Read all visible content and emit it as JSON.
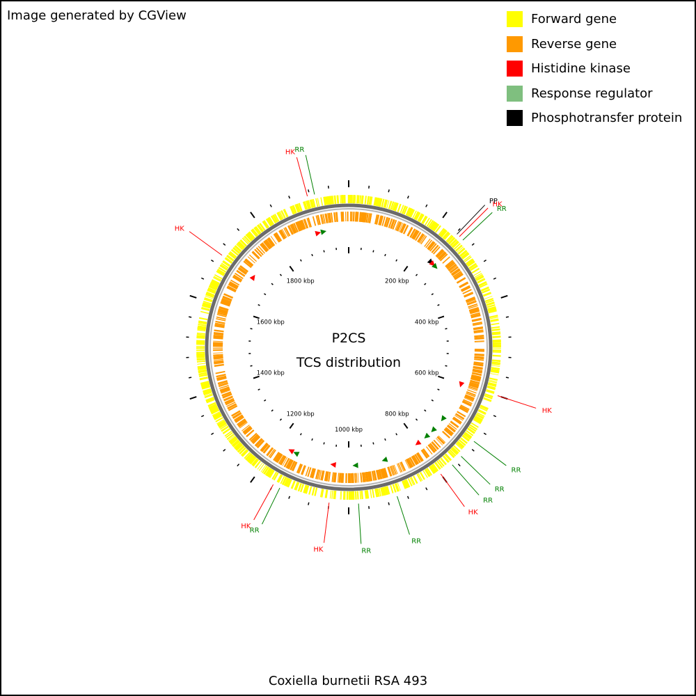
{
  "credit": "Image generated by CGView",
  "legend": [
    {
      "label": "Forward gene",
      "color": "#ffff00"
    },
    {
      "label": "Reverse gene",
      "color": "#ff9900"
    },
    {
      "label": "Histidine kinase",
      "color": "#ff0000"
    },
    {
      "label": "Response regulator",
      "color": "#7fbf7f"
    },
    {
      "label": "Phosphotransfer protein",
      "color": "#000000"
    }
  ],
  "map": {
    "title_line1": "P2CS",
    "title_line2": "TCS distribution",
    "genome_length_kbp": 2000,
    "kbp_labels": [
      {
        "kbp": 200,
        "text": "200 kbp"
      },
      {
        "kbp": 400,
        "text": "400 kbp"
      },
      {
        "kbp": 600,
        "text": "600 kbp"
      },
      {
        "kbp": 800,
        "text": "800 kbp"
      },
      {
        "kbp": 1000,
        "text": "1000 kbp"
      },
      {
        "kbp": 1200,
        "text": "1200 kbp"
      },
      {
        "kbp": 1400,
        "text": "1400 kbp"
      },
      {
        "kbp": 1600,
        "text": "1600 kbp"
      },
      {
        "kbp": 1800,
        "text": "1800 kbp"
      }
    ],
    "features": [
      {
        "type": "HK",
        "kbp": 1915,
        "label": "HK"
      },
      {
        "type": "RR",
        "kbp": 1930,
        "label": "RR"
      },
      {
        "type": "PP",
        "kbp": 243,
        "label": "PP"
      },
      {
        "type": "HK",
        "kbp": 250,
        "label": "HK"
      },
      {
        "type": "RR",
        "kbp": 260,
        "label": "RR"
      },
      {
        "type": "HK",
        "kbp": 600,
        "label": "HK"
      },
      {
        "type": "RR",
        "kbp": 705,
        "label": "RR"
      },
      {
        "type": "RR",
        "kbp": 745,
        "label": "RR"
      },
      {
        "type": "RR",
        "kbp": 770,
        "label": "RR"
      },
      {
        "type": "HK",
        "kbp": 800,
        "label": "HK"
      },
      {
        "type": "RR",
        "kbp": 900,
        "label": "RR"
      },
      {
        "type": "RR",
        "kbp": 980,
        "label": "RR"
      },
      {
        "type": "HK",
        "kbp": 1040,
        "label": "HK"
      },
      {
        "type": "RR",
        "kbp": 1145,
        "label": "RR"
      },
      {
        "type": "HK",
        "kbp": 1160,
        "label": "HK"
      },
      {
        "type": "HK",
        "kbp": 1700,
        "label": "HK"
      }
    ]
  },
  "footer": "Coxiella burnetii RSA 493"
}
